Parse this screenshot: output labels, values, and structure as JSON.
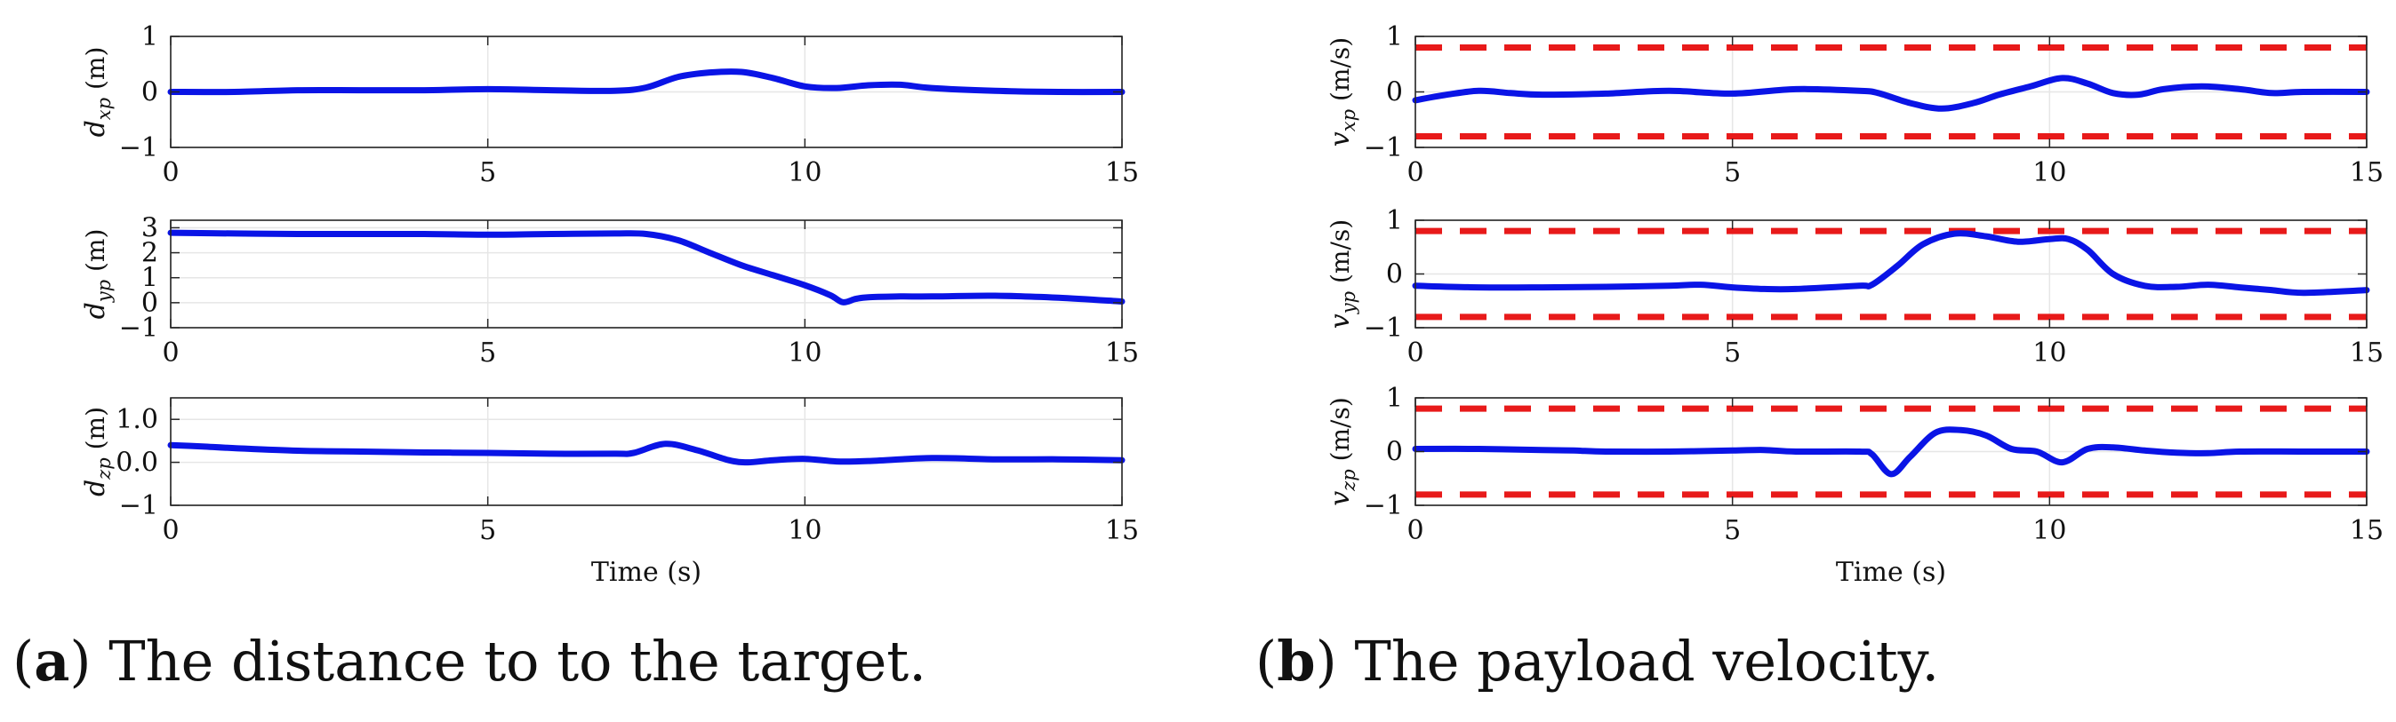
{
  "captions": [
    {
      "letter": "a",
      "text": ") The distance to to the target."
    },
    {
      "letter": "b",
      "text": ") The payload velocity."
    }
  ],
  "colors": {
    "series": "#0a14e6",
    "limit": "#e81a1a",
    "grid": "#e6e6e6",
    "axes": "#262626"
  },
  "chart_data": [
    {
      "type": "line",
      "ylabel": "d_xp (m)",
      "ylabel_sym": "d",
      "ylabel_sub": "xp",
      "ylabel_unit": "(m)",
      "xlim": [
        0,
        15
      ],
      "ylim": [
        -1,
        1
      ],
      "xticks": [
        0,
        5,
        10,
        15
      ],
      "yticks": [
        -1,
        0,
        1
      ],
      "ytick_labels": [
        "−1",
        "0",
        "1"
      ],
      "grid": true,
      "xlabel": "",
      "series": [
        {
          "x": [
            0,
            1,
            2,
            3,
            4,
            5,
            6,
            7,
            7.5,
            8,
            8.5,
            9,
            9.5,
            10,
            10.5,
            11,
            11.5,
            12,
            13,
            14,
            15
          ],
          "y": [
            0,
            0,
            0.03,
            0.03,
            0.03,
            0.05,
            0.03,
            0.02,
            0.08,
            0.27,
            0.35,
            0.36,
            0.25,
            0.1,
            0.07,
            0.12,
            0.13,
            0.07,
            0.02,
            0,
            0
          ]
        }
      ],
      "limits": []
    },
    {
      "type": "line",
      "ylabel": "d_yp (m)",
      "ylabel_sym": "d",
      "ylabel_sub": "yp",
      "ylabel_unit": "(m)",
      "xlim": [
        0,
        15
      ],
      "ylim": [
        -1,
        3.3
      ],
      "xticks": [
        0,
        5,
        10,
        15
      ],
      "yticks": [
        -1,
        0,
        1,
        2,
        3
      ],
      "ytick_labels": [
        "−1",
        "0",
        "1",
        "2",
        "3"
      ],
      "grid": true,
      "xlabel": "",
      "series": [
        {
          "x": [
            0,
            1,
            2,
            3,
            4,
            5,
            6,
            7,
            7.5,
            8,
            8.5,
            9,
            9.5,
            10,
            10.4,
            10.6,
            10.8,
            11,
            11.5,
            12,
            13,
            14,
            15
          ],
          "y": [
            2.8,
            2.77,
            2.75,
            2.75,
            2.75,
            2.72,
            2.75,
            2.77,
            2.75,
            2.5,
            2.0,
            1.5,
            1.1,
            0.7,
            0.3,
            0.02,
            0.15,
            0.22,
            0.25,
            0.25,
            0.28,
            0.2,
            0.05
          ]
        }
      ],
      "limits": []
    },
    {
      "type": "line",
      "ylabel": "d_zp (m)",
      "ylabel_sym": "d",
      "ylabel_sub": "zp",
      "ylabel_unit": "(m)",
      "xlim": [
        0,
        15
      ],
      "ylim": [
        -1,
        1.5
      ],
      "xticks": [
        0,
        5,
        10,
        15
      ],
      "yticks": [
        -1,
        0,
        1
      ],
      "ytick_labels": [
        "−1",
        "0.0",
        "1.0"
      ],
      "grid": true,
      "xlabel": "Time (s)",
      "series": [
        {
          "x": [
            0,
            0.5,
            1,
            2,
            3,
            4,
            5,
            6,
            7,
            7.3,
            7.8,
            8.3,
            8.8,
            9.1,
            9.5,
            10,
            10.5,
            11,
            12,
            13,
            14,
            15
          ],
          "y": [
            0.4,
            0.37,
            0.33,
            0.27,
            0.25,
            0.23,
            0.22,
            0.2,
            0.2,
            0.22,
            0.43,
            0.28,
            0.05,
            0,
            0.05,
            0.08,
            0.02,
            0.03,
            0.1,
            0.07,
            0.07,
            0.05
          ]
        }
      ],
      "limits": []
    },
    {
      "type": "line",
      "ylabel": "v_xp (m/s)",
      "ylabel_sym": "v",
      "ylabel_sub": "xp",
      "ylabel_unit": "(m/s)",
      "xlim": [
        0,
        15
      ],
      "ylim": [
        -1,
        1
      ],
      "xticks": [
        0,
        5,
        10,
        15
      ],
      "yticks": [
        -1,
        0,
        1
      ],
      "ytick_labels": [
        "−1",
        "0",
        "1"
      ],
      "grid": true,
      "xlabel": "",
      "series": [
        {
          "x": [
            0,
            0.5,
            1,
            1.5,
            2,
            3,
            4,
            5,
            6,
            7,
            7.3,
            7.8,
            8.3,
            8.8,
            9.2,
            9.7,
            10.2,
            10.6,
            11,
            11.4,
            11.8,
            12.4,
            13,
            13.5,
            14,
            15
          ],
          "y": [
            -0.15,
            -0.05,
            0.02,
            -0.02,
            -0.05,
            -0.03,
            0.02,
            -0.03,
            0.05,
            0.02,
            -0.02,
            -0.2,
            -0.3,
            -0.2,
            -0.05,
            0.1,
            0.25,
            0.15,
            -0.02,
            -0.05,
            0.05,
            0.1,
            0.05,
            -0.02,
            0,
            0
          ]
        }
      ],
      "limits": [
        0.8,
        -0.8
      ]
    },
    {
      "type": "line",
      "ylabel": "v_yp (m/s)",
      "ylabel_sym": "v",
      "ylabel_sub": "yp",
      "ylabel_unit": "(m/s)",
      "xlim": [
        0,
        15
      ],
      "ylim": [
        -1,
        1
      ],
      "xticks": [
        0,
        5,
        10,
        15
      ],
      "yticks": [
        -1,
        0,
        1
      ],
      "ytick_labels": [
        "−1",
        "0",
        "1"
      ],
      "grid": true,
      "xlabel": "",
      "series": [
        {
          "x": [
            0,
            1,
            2,
            3,
            4,
            4.5,
            5,
            5.5,
            6,
            7,
            7.2,
            7.6,
            8,
            8.5,
            9,
            9.5,
            10,
            10.3,
            10.6,
            11,
            11.5,
            12,
            12.5,
            13,
            13.5,
            14,
            15
          ],
          "y": [
            -0.22,
            -0.25,
            -0.25,
            -0.24,
            -0.22,
            -0.2,
            -0.25,
            -0.28,
            -0.28,
            -0.22,
            -0.2,
            0.15,
            0.55,
            0.75,
            0.7,
            0.6,
            0.65,
            0.65,
            0.45,
            0.0,
            -0.22,
            -0.24,
            -0.2,
            -0.25,
            -0.3,
            -0.35,
            -0.3
          ]
        }
      ],
      "limits": [
        0.8,
        -0.8
      ]
    },
    {
      "type": "line",
      "ylabel": "v_zp (m/s)",
      "ylabel_sym": "v",
      "ylabel_sub": "zp",
      "ylabel_unit": "(m/s)",
      "xlim": [
        0,
        15
      ],
      "ylim": [
        -1,
        1
      ],
      "xticks": [
        0,
        5,
        10,
        15
      ],
      "yticks": [
        -1,
        0,
        1
      ],
      "ytick_labels": [
        "−1",
        "0",
        "1"
      ],
      "grid": true,
      "xlabel": "Time (s)",
      "series": [
        {
          "x": [
            0,
            1,
            2,
            2.5,
            3,
            4,
            5,
            5.5,
            6,
            7,
            7.2,
            7.5,
            7.8,
            8.2,
            8.6,
            9,
            9.4,
            9.8,
            10.2,
            10.6,
            11,
            11.5,
            12,
            12.5,
            13,
            14,
            15
          ],
          "y": [
            0.05,
            0.05,
            0.03,
            0.02,
            0,
            0,
            0.02,
            0.03,
            0,
            0,
            -0.05,
            -0.42,
            -0.1,
            0.35,
            0.4,
            0.3,
            0.05,
            0,
            -0.2,
            0.05,
            0.08,
            0.02,
            -0.02,
            -0.03,
            0,
            0,
            0
          ]
        }
      ],
      "limits": [
        0.8,
        -0.8
      ]
    }
  ]
}
